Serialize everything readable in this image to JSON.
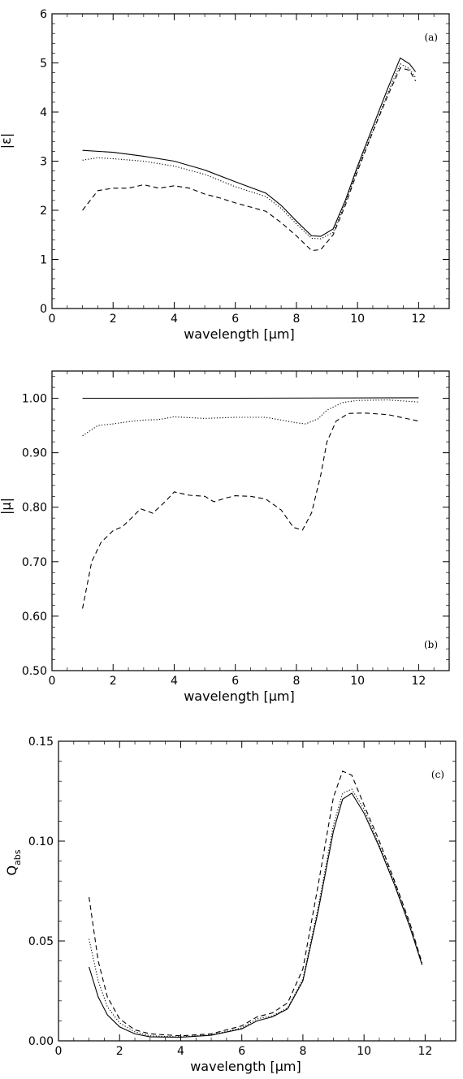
{
  "chart_data": [
    {
      "type": "line",
      "panel_label": "(a)",
      "xlabel": "wavelength [μm]",
      "ylabel": "|ε|",
      "xlim": [
        0,
        13
      ],
      "ylim": [
        0,
        6
      ],
      "xticks": [
        0,
        2,
        4,
        6,
        8,
        10,
        12
      ],
      "xtick_labels": [
        "0",
        "2",
        "4",
        "6",
        "8",
        "10",
        "12"
      ],
      "yticks": [
        0,
        1,
        2,
        3,
        4,
        5,
        6
      ],
      "ytick_labels": [
        "0",
        "1",
        "2",
        "3",
        "4",
        "5",
        "6"
      ],
      "grid": false,
      "series": [
        {
          "style": "solid",
          "points": [
            [
              1.0,
              3.22
            ],
            [
              2.0,
              3.18
            ],
            [
              3.0,
              3.1
            ],
            [
              4.0,
              3.0
            ],
            [
              5.0,
              2.82
            ],
            [
              6.0,
              2.58
            ],
            [
              7.0,
              2.35
            ],
            [
              7.5,
              2.1
            ],
            [
              8.0,
              1.78
            ],
            [
              8.5,
              1.48
            ],
            [
              8.8,
              1.47
            ],
            [
              9.2,
              1.62
            ],
            [
              9.6,
              2.2
            ],
            [
              10.0,
              2.9
            ],
            [
              10.5,
              3.7
            ],
            [
              11.0,
              4.5
            ],
            [
              11.4,
              5.1
            ],
            [
              11.7,
              4.98
            ],
            [
              11.9,
              4.82
            ]
          ]
        },
        {
          "style": "dotted",
          "points": [
            [
              1.0,
              3.02
            ],
            [
              1.5,
              3.07
            ],
            [
              2.0,
              3.05
            ],
            [
              3.0,
              3.0
            ],
            [
              4.0,
              2.9
            ],
            [
              5.0,
              2.73
            ],
            [
              6.0,
              2.48
            ],
            [
              7.0,
              2.28
            ],
            [
              7.5,
              2.04
            ],
            [
              8.0,
              1.72
            ],
            [
              8.5,
              1.43
            ],
            [
              8.8,
              1.42
            ],
            [
              9.2,
              1.55
            ],
            [
              9.6,
              2.15
            ],
            [
              10.0,
              2.85
            ],
            [
              10.5,
              3.62
            ],
            [
              11.0,
              4.4
            ],
            [
              11.4,
              4.98
            ],
            [
              11.7,
              4.88
            ],
            [
              11.9,
              4.7
            ]
          ]
        },
        {
          "style": "dashed",
          "points": [
            [
              1.0,
              2.0
            ],
            [
              1.5,
              2.4
            ],
            [
              2.0,
              2.45
            ],
            [
              2.5,
              2.45
            ],
            [
              3.0,
              2.52
            ],
            [
              3.5,
              2.45
            ],
            [
              4.0,
              2.5
            ],
            [
              4.5,
              2.45
            ],
            [
              5.0,
              2.33
            ],
            [
              5.5,
              2.25
            ],
            [
              6.0,
              2.15
            ],
            [
              7.0,
              1.98
            ],
            [
              7.5,
              1.75
            ],
            [
              8.0,
              1.48
            ],
            [
              8.5,
              1.18
            ],
            [
              8.8,
              1.2
            ],
            [
              9.2,
              1.5
            ],
            [
              9.6,
              2.1
            ],
            [
              10.0,
              2.8
            ],
            [
              10.5,
              3.6
            ],
            [
              11.0,
              4.35
            ],
            [
              11.4,
              4.9
            ],
            [
              11.7,
              4.85
            ],
            [
              11.9,
              4.63
            ]
          ]
        }
      ]
    },
    {
      "type": "line",
      "panel_label": "(b)",
      "xlabel": "wavelength [μm]",
      "ylabel": "|μ|",
      "xlim": [
        0,
        13
      ],
      "ylim": [
        0.5,
        1.05
      ],
      "xticks": [
        0,
        2,
        4,
        6,
        8,
        10,
        12
      ],
      "xtick_labels": [
        "0",
        "2",
        "4",
        "6",
        "8",
        "10",
        "12"
      ],
      "yticks": [
        0.5,
        0.6,
        0.7,
        0.8,
        0.9,
        1.0
      ],
      "ytick_labels": [
        "0.50",
        "0.60",
        "0.70",
        "0.80",
        "0.90",
        "1.00"
      ],
      "grid": false,
      "series": [
        {
          "style": "solid",
          "points": [
            [
              1.0,
              1.0
            ],
            [
              6.0,
              1.0
            ],
            [
              12.0,
              1.001
            ]
          ]
        },
        {
          "style": "dotted",
          "points": [
            [
              1.0,
              0.931
            ],
            [
              1.5,
              0.95
            ],
            [
              2.0,
              0.953
            ],
            [
              2.5,
              0.957
            ],
            [
              3.0,
              0.96
            ],
            [
              3.5,
              0.961
            ],
            [
              4.0,
              0.966
            ],
            [
              5.0,
              0.963
            ],
            [
              6.0,
              0.965
            ],
            [
              7.0,
              0.965
            ],
            [
              7.5,
              0.96
            ],
            [
              8.0,
              0.955
            ],
            [
              8.3,
              0.953
            ],
            [
              8.7,
              0.962
            ],
            [
              9.0,
              0.978
            ],
            [
              9.5,
              0.992
            ],
            [
              10.0,
              0.996
            ],
            [
              11.0,
              0.997
            ],
            [
              12.0,
              0.993
            ]
          ]
        },
        {
          "style": "dashed",
          "points": [
            [
              1.0,
              0.614
            ],
            [
              1.3,
              0.7
            ],
            [
              1.6,
              0.735
            ],
            [
              2.0,
              0.757
            ],
            [
              2.3,
              0.764
            ],
            [
              2.6,
              0.78
            ],
            [
              2.9,
              0.797
            ],
            [
              3.3,
              0.789
            ],
            [
              3.7,
              0.81
            ],
            [
              4.0,
              0.828
            ],
            [
              4.5,
              0.822
            ],
            [
              5.0,
              0.82
            ],
            [
              5.3,
              0.81
            ],
            [
              5.7,
              0.817
            ],
            [
              6.0,
              0.821
            ],
            [
              6.5,
              0.82
            ],
            [
              7.0,
              0.815
            ],
            [
              7.5,
              0.795
            ],
            [
              7.9,
              0.763
            ],
            [
              8.2,
              0.758
            ],
            [
              8.5,
              0.79
            ],
            [
              8.8,
              0.86
            ],
            [
              9.0,
              0.92
            ],
            [
              9.3,
              0.958
            ],
            [
              9.7,
              0.972
            ],
            [
              10.2,
              0.973
            ],
            [
              11.0,
              0.97
            ],
            [
              12.0,
              0.958
            ]
          ]
        }
      ]
    },
    {
      "type": "line",
      "panel_label": "(c)",
      "xlabel": "wavelength [μm]",
      "ylabel": "Q_abs",
      "ylabel_main": "Q",
      "ylabel_sub": "abs",
      "xlim": [
        0,
        13
      ],
      "ylim": [
        0,
        0.15
      ],
      "xticks": [
        0,
        2,
        4,
        6,
        8,
        10,
        12
      ],
      "xtick_labels": [
        "0",
        "2",
        "4",
        "6",
        "8",
        "10",
        "12"
      ],
      "yticks": [
        0,
        0.05,
        0.1,
        0.15
      ],
      "ytick_labels": [
        "0.00",
        "0.05",
        "0.10",
        "0.15"
      ],
      "grid": false,
      "series": [
        {
          "style": "solid",
          "points": [
            [
              1.0,
              0.037
            ],
            [
              1.3,
              0.022
            ],
            [
              1.6,
              0.013
            ],
            [
              2.0,
              0.007
            ],
            [
              2.5,
              0.0035
            ],
            [
              3.0,
              0.002
            ],
            [
              4.0,
              0.0018
            ],
            [
              5.0,
              0.0028
            ],
            [
              6.0,
              0.006
            ],
            [
              6.5,
              0.01
            ],
            [
              7.0,
              0.012
            ],
            [
              7.5,
              0.016
            ],
            [
              8.0,
              0.03
            ],
            [
              8.5,
              0.065
            ],
            [
              9.0,
              0.105
            ],
            [
              9.3,
              0.121
            ],
            [
              9.6,
              0.124
            ],
            [
              10.0,
              0.114
            ],
            [
              10.5,
              0.097
            ],
            [
              11.0,
              0.078
            ],
            [
              11.5,
              0.057
            ],
            [
              11.9,
              0.038
            ]
          ]
        },
        {
          "style": "dotted",
          "points": [
            [
              1.0,
              0.051
            ],
            [
              1.3,
              0.03
            ],
            [
              1.6,
              0.017
            ],
            [
              2.0,
              0.009
            ],
            [
              2.5,
              0.0045
            ],
            [
              3.0,
              0.0025
            ],
            [
              4.0,
              0.002
            ],
            [
              5.0,
              0.003
            ],
            [
              6.0,
              0.0065
            ],
            [
              6.5,
              0.011
            ],
            [
              7.0,
              0.0125
            ],
            [
              7.5,
              0.0165
            ],
            [
              8.0,
              0.031
            ],
            [
              8.5,
              0.067
            ],
            [
              9.0,
              0.108
            ],
            [
              9.3,
              0.124
            ],
            [
              9.6,
              0.126
            ],
            [
              10.0,
              0.116
            ],
            [
              10.5,
              0.098
            ],
            [
              11.0,
              0.079
            ],
            [
              11.5,
              0.058
            ],
            [
              11.9,
              0.038
            ]
          ]
        },
        {
          "style": "dashed",
          "points": [
            [
              1.0,
              0.072
            ],
            [
              1.3,
              0.04
            ],
            [
              1.6,
              0.022
            ],
            [
              2.0,
              0.011
            ],
            [
              2.5,
              0.0055
            ],
            [
              3.0,
              0.0035
            ],
            [
              4.0,
              0.0025
            ],
            [
              5.0,
              0.0035
            ],
            [
              6.0,
              0.0075
            ],
            [
              6.5,
              0.012
            ],
            [
              7.0,
              0.014
            ],
            [
              7.5,
              0.019
            ],
            [
              8.0,
              0.036
            ],
            [
              8.5,
              0.078
            ],
            [
              9.0,
              0.122
            ],
            [
              9.3,
              0.135
            ],
            [
              9.6,
              0.133
            ],
            [
              10.0,
              0.118
            ],
            [
              10.5,
              0.1
            ],
            [
              11.0,
              0.08
            ],
            [
              11.5,
              0.059
            ],
            [
              11.9,
              0.039
            ]
          ]
        }
      ]
    }
  ]
}
